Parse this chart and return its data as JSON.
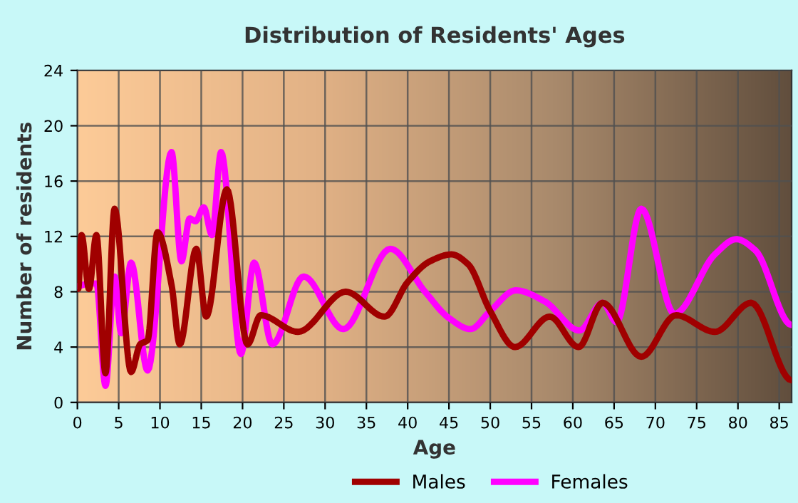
{
  "chart_data": {
    "type": "line",
    "title": "Distribution of Residents' Ages",
    "xlabel": "Age",
    "ylabel": "Number of residents",
    "xlim": [
      0,
      86.5
    ],
    "xticks": [
      0,
      5,
      10,
      15,
      20,
      25,
      30,
      35,
      40,
      45,
      50,
      55,
      60,
      65,
      70,
      75,
      80,
      85
    ],
    "ylim": [
      0,
      24
    ],
    "yticks": [
      0,
      4,
      8,
      12,
      16,
      20,
      24
    ],
    "grid": true,
    "legend": "bottom",
    "marker": "none",
    "line_style": "solid",
    "series": [
      {
        "name": "Males",
        "color": "#a00000",
        "x": [
          0,
          0.1,
          0.5,
          1.4,
          2.3,
          3.4,
          4.5,
          6.5,
          7.6,
          8.5,
          9.7,
          11.4,
          12.4,
          14.4,
          15.6,
          18.1,
          20.6,
          22.2,
          26.7,
          32.5,
          37.2,
          40,
          42.7,
          45.3,
          47.3,
          50,
          53,
          57.2,
          60.7,
          63.6,
          68.3,
          72.5,
          77.2,
          81.6,
          86.5
        ],
        "values": [
          11.2,
          8.2,
          12.1,
          8.2,
          12.1,
          2.1,
          14,
          2.2,
          4.2,
          4.5,
          12.3,
          8.5,
          4.2,
          11.1,
          6.2,
          15.4,
          4.2,
          6.3,
          5.1,
          8,
          6.2,
          8.7,
          10.2,
          10.7,
          10,
          6.6,
          4,
          6.2,
          4,
          7.2,
          3.3,
          6.3,
          5.1,
          7.2,
          1.6
        ]
      },
      {
        "name": "Females",
        "color": "#ff00ff",
        "x": [
          0,
          1.4,
          2.3,
          3.4,
          4.5,
          5.3,
          6.5,
          8.5,
          11.4,
          12.6,
          13.6,
          14.3,
          15.3,
          16.3,
          17.4,
          19.8,
          21.4,
          23.6,
          27.4,
          32.2,
          37.9,
          42.1,
          45,
          47.6,
          50,
          53.1,
          56.6,
          60.8,
          63.6,
          65.3,
          68.3,
          72.3,
          77.2,
          79.8,
          82.1,
          86.5
        ],
        "values": [
          8.4,
          8.6,
          8.6,
          1.2,
          9.1,
          5,
          10.1,
          2.3,
          18.1,
          10.2,
          13.3,
          13.1,
          14.1,
          12.1,
          18.1,
          3.5,
          10.1,
          4.2,
          9.1,
          5.3,
          11.1,
          8,
          6.1,
          5.3,
          6.6,
          8.1,
          7.3,
          5.2,
          7.2,
          5.8,
          14,
          6.4,
          10.7,
          11.8,
          11,
          5.6
        ]
      }
    ]
  }
}
